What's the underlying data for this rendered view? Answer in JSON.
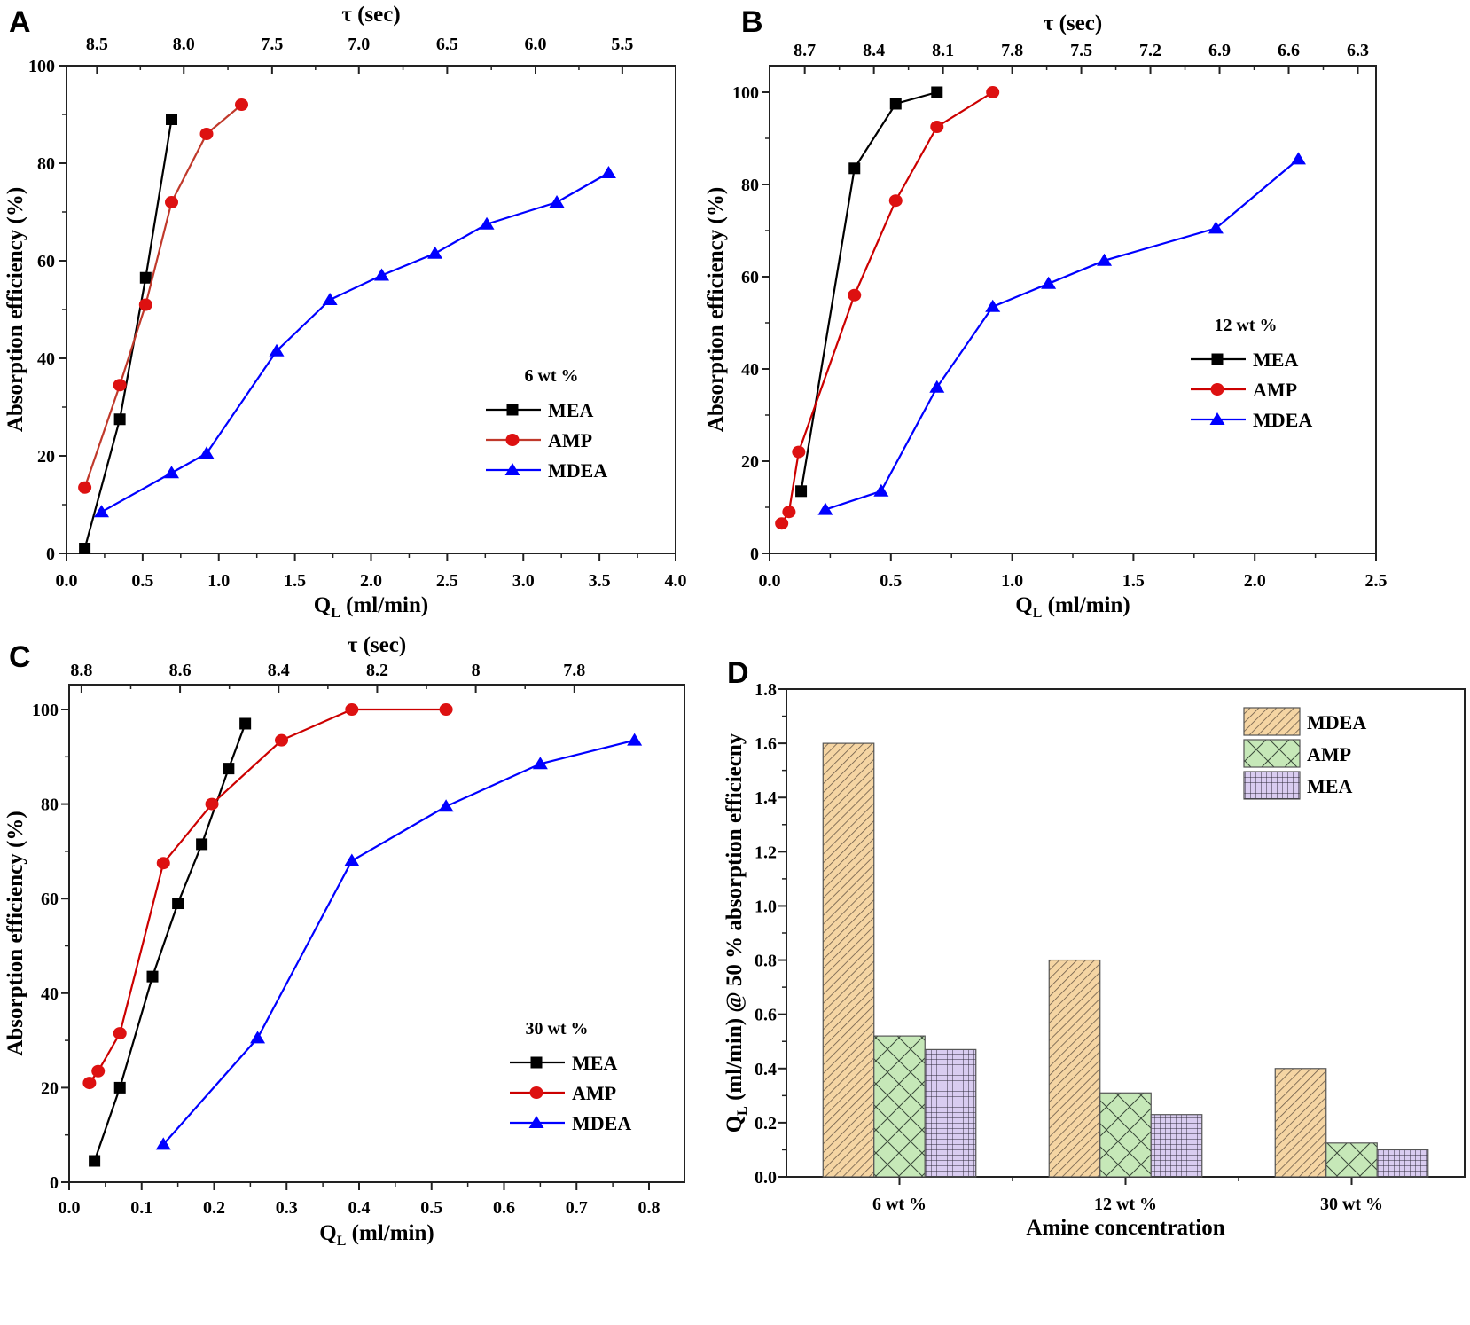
{
  "chart_data": [
    {
      "panel": "A",
      "type": "line",
      "title": "",
      "legend_title": "6 wt %",
      "legend_position": "center-right",
      "xlabel": "Q_L (ml/min)",
      "xlabel_main": "Q",
      "xlabel_sub": "L",
      "xlabel_rest": " (ml/min)",
      "ylabel": "Absorption efficiency (%)",
      "top_xlabel": "τ (sec)",
      "xlim": [
        0,
        4.0
      ],
      "ylim": [
        0,
        100
      ],
      "xticks": [
        0.0,
        0.5,
        1.0,
        1.5,
        2.0,
        2.5,
        3.0,
        3.5,
        4.0
      ],
      "xtick_labels": [
        "0.0",
        "0.5",
        "1.0",
        "1.5",
        "2.0",
        "2.5",
        "3.0",
        "3.5",
        "4.0"
      ],
      "yticks": [
        0,
        20,
        40,
        60,
        80,
        100
      ],
      "ytick_labels": [
        "0",
        "20",
        "40",
        "60",
        "80",
        "100"
      ],
      "top_ticks_x": [
        0.2,
        0.77,
        1.35,
        1.92,
        2.5,
        3.08,
        3.65
      ],
      "top_tick_labels": [
        "8.5",
        "8.0",
        "7.5",
        "7.0",
        "6.5",
        "6.0",
        "5.5"
      ],
      "grid": false,
      "series": [
        {
          "name": "MEA",
          "color": "#000000",
          "marker": "square",
          "x": [
            0.12,
            0.35,
            0.52,
            0.69
          ],
          "y": [
            1,
            27.5,
            56.5,
            89
          ]
        },
        {
          "name": "AMP",
          "color": "#c0392b",
          "marker_color": "#dd1111",
          "marker": "circle",
          "x": [
            0.12,
            0.35,
            0.52,
            0.69,
            0.92,
            1.15
          ],
          "y": [
            13.5,
            34.5,
            51,
            72,
            86,
            92
          ]
        },
        {
          "name": "MDEA",
          "color": "#0000ff",
          "marker": "triangle",
          "x": [
            0.23,
            0.69,
            0.92,
            1.38,
            1.73,
            2.07,
            2.42,
            2.76,
            3.22,
            3.56
          ],
          "y": [
            8.5,
            16.5,
            20.5,
            41.5,
            52,
            57,
            61.5,
            67.5,
            72,
            78
          ]
        }
      ]
    },
    {
      "panel": "B",
      "type": "line",
      "title": "",
      "legend_title": "12 wt %",
      "legend_position": "center-right",
      "xlabel": "Q_L (ml/min)",
      "xlabel_main": "Q",
      "xlabel_sub": "L",
      "xlabel_rest": " (ml/min)",
      "ylabel": "Absorption efficiency (%)",
      "top_xlabel": "τ (sec)",
      "xlim": [
        0,
        2.5
      ],
      "ylim": [
        0,
        106
      ],
      "xticks": [
        0.0,
        0.5,
        1.0,
        1.5,
        2.0,
        2.5
      ],
      "xtick_labels": [
        "0.0",
        "0.5",
        "1.0",
        "1.5",
        "2.0",
        "2.5"
      ],
      "yticks": [
        0,
        20,
        40,
        60,
        80,
        100
      ],
      "ytick_labels": [
        "0",
        "20",
        "40",
        "60",
        "80",
        "100"
      ],
      "top_ticks_x": [
        0.145,
        0.43,
        0.715,
        1.0,
        1.285,
        1.57,
        1.855,
        2.14,
        2.425
      ],
      "top_tick_labels": [
        "8.7",
        "8.4",
        "8.1",
        "7.8",
        "7.5",
        "7.2",
        "6.9",
        "6.6",
        "6.3"
      ],
      "grid": false,
      "series": [
        {
          "name": "MEA",
          "color": "#000000",
          "marker": "square",
          "x": [
            0.13,
            0.35,
            0.52,
            0.69
          ],
          "y": [
            13.5,
            83.5,
            97.5,
            100
          ]
        },
        {
          "name": "AMP",
          "color": "#cc0000",
          "marker_color": "#dd1111",
          "marker": "circle",
          "x": [
            0.05,
            0.08,
            0.12,
            0.35,
            0.52,
            0.69,
            0.92
          ],
          "y": [
            6.5,
            9,
            22,
            56,
            76.5,
            92.5,
            100
          ]
        },
        {
          "name": "MDEA",
          "color": "#0000ff",
          "marker": "triangle",
          "x": [
            0.23,
            0.46,
            0.69,
            0.92,
            1.15,
            1.38,
            1.84,
            2.18
          ],
          "y": [
            9.5,
            13.5,
            36,
            53.5,
            58.5,
            63.5,
            70.5,
            85.5
          ]
        }
      ]
    },
    {
      "panel": "C",
      "type": "line",
      "title": "",
      "legend_title": "30 wt %",
      "legend_position": "bottom-right",
      "xlabel": "Q_L (ml/min)",
      "xlabel_main": "Q",
      "xlabel_sub": "L",
      "xlabel_rest": " (ml/min)",
      "ylabel": "Absorption efficiency (%)",
      "top_xlabel": "τ (sec)",
      "xlim": [
        0,
        0.85
      ],
      "ylim": [
        0,
        106
      ],
      "xticks": [
        0.0,
        0.1,
        0.2,
        0.3,
        0.4,
        0.5,
        0.6,
        0.7,
        0.8
      ],
      "xtick_labels": [
        "0.0",
        "0.1",
        "0.2",
        "0.3",
        "0.4",
        "0.5",
        "0.6",
        "0.7",
        "0.8"
      ],
      "yticks": [
        0,
        20,
        40,
        60,
        80,
        100
      ],
      "ytick_labels": [
        "0",
        "20",
        "40",
        "60",
        "80",
        "100"
      ],
      "top_ticks_x": [
        0.017,
        0.153,
        0.289,
        0.425,
        0.561,
        0.697
      ],
      "top_tick_labels": [
        "8.8",
        "8.6",
        "8.4",
        "8.2",
        "8",
        "7.8"
      ],
      "grid": false,
      "series": [
        {
          "name": "MEA",
          "color": "#000000",
          "marker": "square",
          "x": [
            0.035,
            0.07,
            0.115,
            0.15,
            0.183,
            0.22,
            0.243
          ],
          "y": [
            4.5,
            20,
            43.5,
            59,
            71.5,
            87.5,
            97
          ]
        },
        {
          "name": "AMP",
          "color": "#cc0000",
          "marker_color": "#dd1111",
          "marker": "circle",
          "x": [
            0.028,
            0.04,
            0.07,
            0.13,
            0.197,
            0.293,
            0.39,
            0.52
          ],
          "y": [
            21,
            23.5,
            31.5,
            67.5,
            80,
            93.5,
            100,
            100
          ]
        },
        {
          "name": "MDEA",
          "color": "#0000ff",
          "marker": "triangle",
          "x": [
            0.13,
            0.26,
            0.39,
            0.52,
            0.65,
            0.78
          ],
          "y": [
            8,
            30.5,
            68,
            79.5,
            88.5,
            93.5
          ]
        }
      ]
    },
    {
      "panel": "D",
      "type": "bar",
      "title": "",
      "legend_position": "top-right",
      "xlabel": "Amine concentration",
      "ylabel": "Q_L (ml/min) @ 50 % absorption efficiecny",
      "ylabel_main": "Q",
      "ylabel_sub": "L",
      "ylabel_rest": " (ml/min) @ 50 % absorption efficiecny",
      "ylim": [
        0,
        1.8
      ],
      "yticks": [
        0.0,
        0.2,
        0.4,
        0.6,
        0.8,
        1.0,
        1.2,
        1.4,
        1.6,
        1.8
      ],
      "ytick_labels": [
        "0.0",
        "0.2",
        "0.4",
        "0.6",
        "0.8",
        "1.0",
        "1.2",
        "1.4",
        "1.6",
        "1.8"
      ],
      "categories": [
        "6 wt %",
        "12 wt %",
        "30 wt %"
      ],
      "grid": false,
      "series": [
        {
          "name": "MDEA",
          "fill": "#f5d5a3",
          "pattern": "diagonal-hatch",
          "values": [
            1.6,
            0.8,
            0.4
          ]
        },
        {
          "name": "AMP",
          "fill": "#c6e8b8",
          "pattern": "crosshatch",
          "values": [
            0.52,
            0.31,
            0.125
          ]
        },
        {
          "name": "MEA",
          "fill": "#d9ccf0",
          "pattern": "grid",
          "values": [
            0.47,
            0.23,
            0.1
          ]
        }
      ]
    }
  ]
}
